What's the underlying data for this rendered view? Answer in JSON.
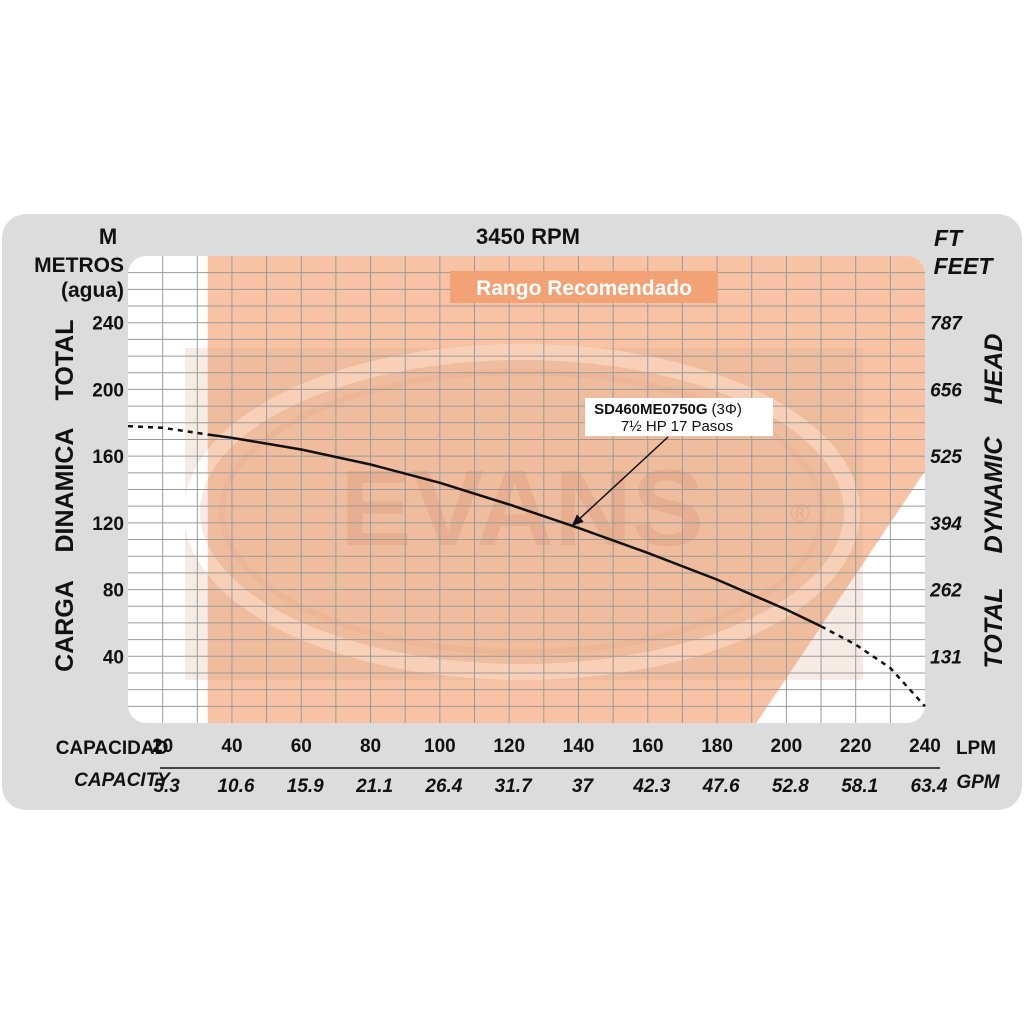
{
  "chart_data": {
    "type": "line",
    "title": "3450 RPM",
    "y_left_unit": "M",
    "y_left_title": [
      "METROS",
      "(agua)"
    ],
    "y_left_side_words": [
      "CARGA",
      "DINAMICA",
      "TOTAL"
    ],
    "y_right_unit": "FT",
    "y_right_title": "FEET",
    "y_right_side_words": [
      "TOTAL",
      "DYNAMIC",
      "HEAD"
    ],
    "x_label_lpm": "CAPACIDAD",
    "x_unit_lpm": "LPM",
    "x_label_gpm": "CAPACITY",
    "x_unit_gpm": "GPM",
    "x_ticks_lpm": [
      "20",
      "40",
      "60",
      "80",
      "100",
      "120",
      "140",
      "160",
      "180",
      "200",
      "220",
      "240"
    ],
    "x_ticks_gpm": [
      "5.3",
      "10.6",
      "15.9",
      "21.1",
      "26.4",
      "31.7",
      "37",
      "42.3",
      "47.6",
      "52.8",
      "58.1",
      "63.4"
    ],
    "y_ticks_m": [
      "40",
      "80",
      "120",
      "160",
      "200",
      "240"
    ],
    "y_ticks_ft": [
      "131",
      "262",
      "394",
      "525",
      "656",
      "787"
    ],
    "xlim": [
      10,
      240
    ],
    "ylim": [
      0,
      280
    ],
    "grid": true,
    "recommended_range_label": "Rango Recomendado",
    "recommended_range_lpm": [
      33,
      200
    ],
    "watermark": "EVANS",
    "series": [
      {
        "name": "SD460ME0750G",
        "phase": "(3Φ)",
        "spec": "7½ HP  17 Pasos",
        "solid_x": [
          33,
          40,
          60,
          80,
          100,
          120,
          140,
          160,
          180,
          200,
          210
        ],
        "solid_y": [
          173,
          171,
          164,
          155,
          144,
          131,
          117,
          102,
          86,
          68,
          58
        ],
        "dashed_before_x": [
          10,
          20,
          33
        ],
        "dashed_before_y": [
          178,
          177,
          173
        ],
        "dashed_after_x": [
          210,
          220,
          230,
          240
        ],
        "dashed_after_y": [
          58,
          47,
          33,
          10
        ]
      }
    ],
    "annotation_points_to": {
      "x": 138,
      "y": 118
    },
    "colors": {
      "recommended_fill": "#f7c3a4",
      "recommended_label_bg": "#f3a276",
      "grid_line": "#9a9a9a",
      "curve": "#111111",
      "frame_bg": "#dcdcdc"
    }
  }
}
